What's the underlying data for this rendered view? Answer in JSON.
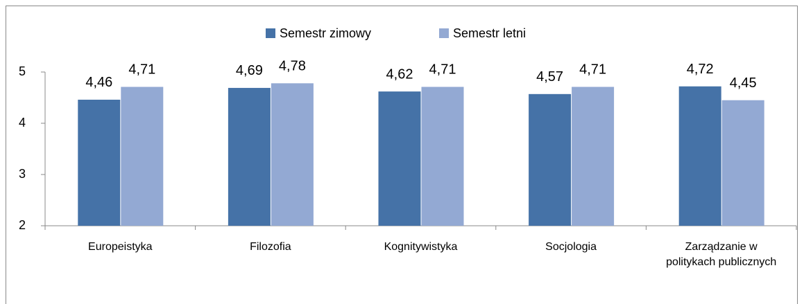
{
  "chart_data": {
    "type": "bar",
    "categories": [
      "Europeistyka",
      "Filozofia",
      "Kognitywistyka",
      "Socjologia",
      "Zarządzanie w politykach publicznych"
    ],
    "series": [
      {
        "name": "Semestr zimowy",
        "color": "#4572a7",
        "values": [
          4.46,
          4.69,
          4.62,
          4.57,
          4.72
        ],
        "value_labels": [
          "4,46",
          "4,69",
          "4,62",
          "4,57",
          "4,72"
        ]
      },
      {
        "name": "Semestr letni",
        "color": "#93a9d3",
        "values": [
          4.71,
          4.78,
          4.71,
          4.71,
          4.45
        ],
        "value_labels": [
          "4,71",
          "4,78",
          "4,71",
          "4,71",
          "4,45"
        ]
      }
    ],
    "ylim": [
      2,
      5
    ],
    "yticks": [
      2,
      3,
      4,
      5
    ],
    "legend": "top"
  }
}
